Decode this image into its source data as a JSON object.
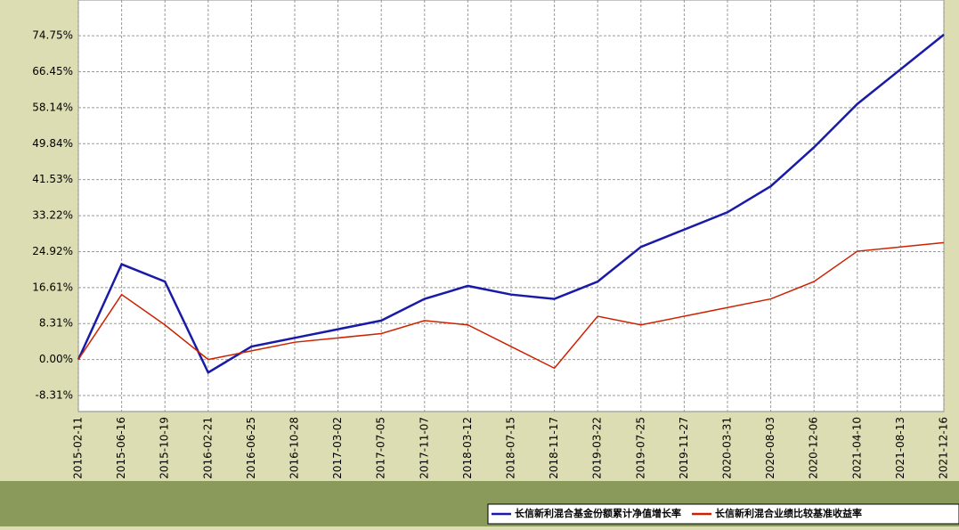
{
  "chart_data": {
    "type": "line",
    "categories": [
      "2015-02-11",
      "2015-06-16",
      "2015-10-19",
      "2016-02-21",
      "2016-06-25",
      "2016-10-28",
      "2017-03-02",
      "2017-07-05",
      "2017-11-07",
      "2018-03-12",
      "2018-07-15",
      "2018-11-17",
      "2019-03-22",
      "2019-07-25",
      "2019-11-27",
      "2020-03-31",
      "2020-08-03",
      "2020-12-06",
      "2021-04-10",
      "2021-08-13",
      "2021-12-16"
    ],
    "series": [
      {
        "name": "长信新利混合基金份额累计净值增长率",
        "color": "#1a1aa8",
        "values": [
          0,
          22,
          18,
          -3,
          3,
          5,
          7,
          9,
          14,
          17,
          15,
          14,
          18,
          26,
          30,
          34,
          40,
          49,
          59,
          67,
          75
        ]
      },
      {
        "name": "长信新利混合业绩比较基准收益率",
        "color": "#cc2200",
        "values": [
          0,
          15,
          8,
          0,
          2,
          4,
          5,
          6,
          9,
          8,
          3,
          -2,
          10,
          8,
          10,
          12,
          14,
          18,
          25,
          26,
          27
        ]
      }
    ],
    "ylim": [
      -12,
      83
    ],
    "yticks": [
      {
        "value": -8.31,
        "label": "-8.31%"
      },
      {
        "value": 0,
        "label": "0.00%"
      },
      {
        "value": 8.31,
        "label": "8.31%"
      },
      {
        "value": 16.61,
        "label": "16.61%"
      },
      {
        "value": 24.92,
        "label": "24.92%"
      },
      {
        "value": 33.22,
        "label": "33.22%"
      },
      {
        "value": 41.53,
        "label": "41.53%"
      },
      {
        "value": 49.84,
        "label": "49.84%"
      },
      {
        "value": 58.14,
        "label": "58.14%"
      },
      {
        "value": 66.45,
        "label": "66.45%"
      },
      {
        "value": 74.75,
        "label": "74.75%"
      }
    ],
    "grid": true
  }
}
